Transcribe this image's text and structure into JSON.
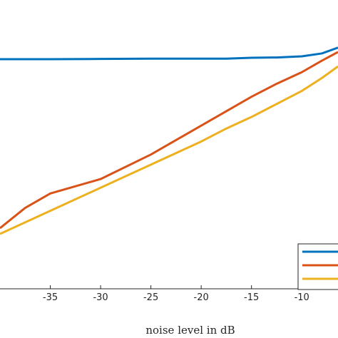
{
  "chart_data": {
    "type": "line",
    "title": "",
    "xlabel": "noise level in dB",
    "ylabel": "",
    "xlim": [
      -40.0,
      -6.4
    ],
    "ylim": [
      0,
      1
    ],
    "x_ticks": [
      "-35",
      "-30",
      "-25",
      "-20",
      "-15",
      "-10"
    ],
    "grid": false,
    "legend_placement": "bottom-right",
    "series": [
      {
        "color": "#0072BD",
        "x": [
          -40,
          -35,
          -30,
          -25,
          -20,
          -17.5,
          -15,
          -12.5,
          -10,
          -8,
          -6.4
        ],
        "y": [
          0.795,
          0.795,
          0.796,
          0.797,
          0.797,
          0.797,
          0.8,
          0.801,
          0.805,
          0.815,
          0.835
        ]
      },
      {
        "color": "#D95319",
        "x": [
          -40,
          -37.5,
          -35,
          -30,
          -25,
          -20,
          -15,
          -12.5,
          -10,
          -8,
          -6.4
        ],
        "y": [
          0.21,
          0.28,
          0.33,
          0.38,
          0.465,
          0.565,
          0.665,
          0.71,
          0.75,
          0.79,
          0.82
        ]
      },
      {
        "color": "#EDB120",
        "x": [
          -40,
          -35,
          -30,
          -25,
          -20,
          -17.5,
          -15,
          -12.5,
          -10,
          -8,
          -6.4
        ],
        "y": [
          0.19,
          0.27,
          0.35,
          0.43,
          0.51,
          0.555,
          0.595,
          0.64,
          0.685,
          0.73,
          0.77
        ]
      }
    ]
  }
}
